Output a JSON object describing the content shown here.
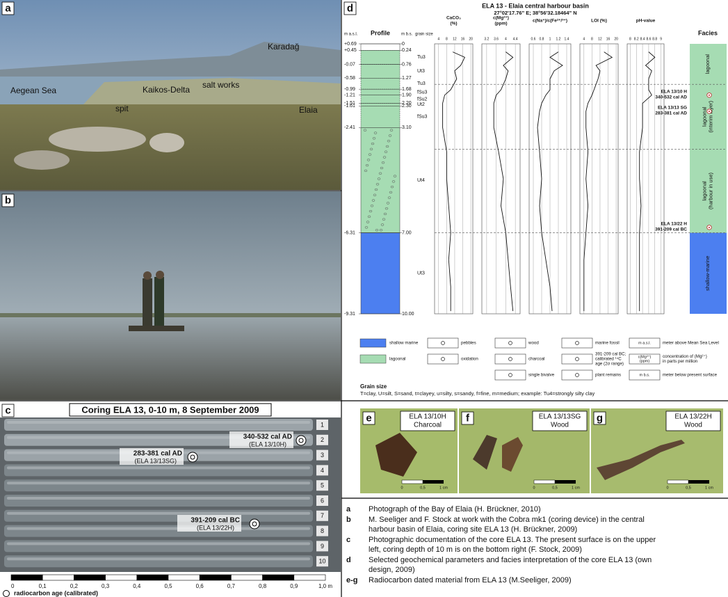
{
  "panel_a": {
    "letter": "a",
    "labels": [
      "Karadağ",
      "Aegean Sea",
      "Kaikos-Delta",
      "spit",
      "salt works",
      "Elaia"
    ]
  },
  "panel_b": {
    "letter": "b"
  },
  "panel_c": {
    "letter": "c",
    "title": "Coring ELA 13, 0-10 m, 8 September 2009",
    "rows": [
      "1",
      "2",
      "3",
      "4",
      "5",
      "6",
      "7",
      "8",
      "9",
      "10"
    ],
    "dates": [
      {
        "age": "340-532 cal AD",
        "sample": "(ELA 13/10H)"
      },
      {
        "age": "283-381 cal AD",
        "sample": "(ELA 13/13SG)"
      },
      {
        "age": "391-209 cal BC",
        "sample": "(ELA 13/22H)"
      }
    ],
    "scale": [
      "0",
      "0,1",
      "0,2",
      "0,3",
      "0,4",
      "0,5",
      "0,6",
      "0,7",
      "0,8",
      "0,9",
      "1,0 m"
    ],
    "legend": "radiocarbon age (calibrated)"
  },
  "panel_d": {
    "letter": "d",
    "title": "ELA 13 - Elaia central harbour basin",
    "coords": "27°02'17.76\" E; 38°56'32.18464\" N",
    "col_masl": "m a.s.l.",
    "col_profile": "Profile",
    "col_mbs": "m b.s.",
    "col_grain": "grain size",
    "col_facies": "Facies",
    "masl": [
      "+0.69",
      "+0.45",
      "-0.07",
      "-0.58",
      "-0.99",
      "-1.21",
      "-1.51",
      "-1.61",
      "-2.41",
      "-6.31",
      "-9.31"
    ],
    "mbs": [
      0,
      0.24,
      0.76,
      1.27,
      1.68,
      {
        "value": 1.9,
        "label": "1.90"
      },
      {
        "value": 2.2,
        "label": "2.20"
      },
      {
        "value": 2.3,
        "label": "2.30"
      },
      {
        "value": 3.1,
        "label": "3.10"
      },
      {
        "value": 7,
        "label": "7.00"
      },
      {
        "value": 10,
        "label": "10.00"
      }
    ],
    "grain": [
      null,
      "Tu3",
      "Ut3",
      "Tu3",
      "fSu3",
      "fSu2",
      "Ut2",
      "fSu3",
      "Ut4",
      "Ut3"
    ],
    "depth": [
      0.3,
      0.5,
      0.8,
      1.0,
      1.3,
      1.7,
      1.9,
      2.2,
      2.5,
      3.1,
      4.0,
      5.0,
      6.0,
      7.0,
      8.0,
      9.0,
      9.9
    ],
    "params": [
      {
        "lines": [
          "CaCO₃",
          "(%)"
        ],
        "xlim": [
          2,
          21
        ],
        "ticks": [
          4,
          8,
          12,
          16,
          20
        ],
        "values": [
          11,
          17,
          15,
          12,
          13,
          10,
          7,
          6,
          6,
          6,
          8,
          8,
          9,
          10,
          9,
          10,
          10
        ]
      },
      {
        "lines": [
          "c(Mg²⁺)",
          "(ppm)"
        ],
        "xlim": [
          3.0,
          4.6
        ],
        "ticks": [
          3.2,
          3.6,
          4,
          4.4
        ],
        "values": [
          4.0,
          4.3,
          3.9,
          4.1,
          4.0,
          3.8,
          3.6,
          3.5,
          3.5,
          3.5,
          3.7,
          3.9,
          3.8,
          4.0,
          4.1,
          4.2,
          4.3
        ]
      },
      {
        "lines": [
          "c(Na⁺)/c(Fe²⁺/³⁺)"
        ],
        "xlim": [
          0.5,
          1.5
        ],
        "ticks": [
          0.6,
          0.8,
          1,
          1.2,
          1.4
        ],
        "values": [
          1.2,
          1.0,
          1.3,
          1.1,
          1.0,
          1.0,
          0.9,
          0.8,
          0.75,
          0.7,
          0.75,
          0.8,
          0.75,
          0.8,
          0.9,
          1.0,
          1.05
        ]
      },
      {
        "lines": [
          "LOI (%)"
        ],
        "xlim": [
          2,
          21
        ],
        "ticks": [
          4,
          8,
          12,
          16,
          20
        ],
        "values": [
          14,
          18,
          10,
          12,
          11,
          9,
          8,
          6,
          5,
          5,
          6,
          5,
          6,
          5,
          4,
          4,
          4
        ]
      },
      {
        "lines": [
          "pH-value"
        ],
        "xlim": [
          7.9,
          9.1
        ],
        "ticks": [
          8,
          8.2,
          8.4,
          8.6,
          8.8,
          9
        ],
        "values": [
          8.6,
          8.8,
          8.5,
          8.7,
          8.6,
          8.6,
          8.7,
          8.4,
          8.4,
          8.4,
          8.3,
          8.3,
          8.35,
          8.3,
          8.3,
          8.3,
          8.3
        ]
      }
    ],
    "facies": [
      {
        "lines": [
          "lagoonal"
        ],
        "top": 0,
        "bottom": 1.5,
        "color": "#a6dcb3"
      },
      {
        "lines": [
          "lagoonal",
          "(interim layer)"
        ],
        "top": 1.5,
        "bottom": 3.9,
        "color": "#a6dcb3"
      },
      {
        "lines": [
          "lagoonal",
          "(harbour in use)"
        ],
        "top": 3.9,
        "bottom": 7,
        "color": "#a6dcb3"
      },
      {
        "lines": [
          "shallow-marine"
        ],
        "top": 7,
        "bottom": 10,
        "color": "#4c7ff0"
      }
    ],
    "dates": [
      {
        "sample": "ELA 13/10 H",
        "age": "340-532 cal AD",
        "depth": 1.9
      },
      {
        "sample": "ELA 13/13 SG",
        "age": "283-381 cal AD",
        "depth": 2.5
      },
      {
        "sample": "ELA 13/22 H",
        "age": "391-209 cal BC",
        "depth": 6.8
      }
    ],
    "legend": [
      [
        {
          "lines": [
            "shallow marine"
          ]
        },
        {
          "lines": [
            "lagoonal"
          ]
        }
      ],
      [
        {
          "lines": [
            "pebbles"
          ]
        },
        {
          "lines": [
            "oxidation"
          ]
        }
      ],
      [
        {
          "lines": [
            "wood"
          ]
        },
        {
          "lines": [
            "charcoal"
          ]
        },
        {
          "lines": [
            "single bivalve"
          ]
        }
      ],
      [
        {
          "lines": [
            "marine fossil"
          ]
        },
        {
          "lines": [
            "391-209 cal BC;",
            "calibrated ¹⁴C",
            "age (2σ range)"
          ]
        },
        {
          "lines": [
            "plant remains"
          ]
        }
      ],
      [
        {
          "key": [
            "m a.s.l."
          ],
          "lines": [
            "meter above Mean Sea Level"
          ]
        },
        {
          "key": [
            "c(Mg²⁺)",
            "(ppm)"
          ],
          "lines": [
            "concentration of (Mg²⁺)",
            "in parts per million"
          ]
        },
        {
          "key": [
            "m b.s."
          ],
          "lines": [
            "meter below present surface"
          ]
        }
      ]
    ],
    "grain_note": {
      "title": "Grain size",
      "text": "T=clay, U=silt, S=sand, t=clayey, u=silty, s=sandy, f=fine, m=medium; example: Tu4=strongly silty clay"
    }
  },
  "panel_efg": [
    {
      "letter": "e",
      "sample": "ELA 13/10H",
      "material": "Charcoal",
      "scale": [
        "0",
        "0,5",
        "1 cm"
      ]
    },
    {
      "letter": "f",
      "sample": "ELA 13/13SG",
      "material": "Wood",
      "scale": [
        "0",
        "0,5",
        "1 cm"
      ]
    },
    {
      "letter": "g",
      "sample": "ELA 13/22H",
      "material": "Wood",
      "scale": [
        "0",
        "0,5",
        "1 cm"
      ]
    }
  ],
  "captions": [
    {
      "letter": "a",
      "lines": [
        "Photograph of the Bay of Elaia (H. Brückner, 2010)"
      ]
    },
    {
      "letter": "b",
      "lines": [
        "M. Seeliger and F. Stock at work with the Cobra mk1 (coring device) in the central",
        "harbour basin of  Elaia, coring site ELA 13 (H. Brückner, 2009)"
      ]
    },
    {
      "letter": "c",
      "lines": [
        "Photographic documentation of the core ELA 13. The present surface is on the upper",
        "left, coring depth of 10 m is on the bottom right (F. Stock, 2009)"
      ]
    },
    {
      "letter": "d",
      "lines": [
        "Selected geochemical parameters and facies interpretation of the core ELA 13 (own",
        "design, 2009)"
      ]
    },
    {
      "letter": "e-g",
      "lines": [
        "Radiocarbon dated material from ELA 13 (M.Seeliger, 2009)"
      ]
    }
  ]
}
